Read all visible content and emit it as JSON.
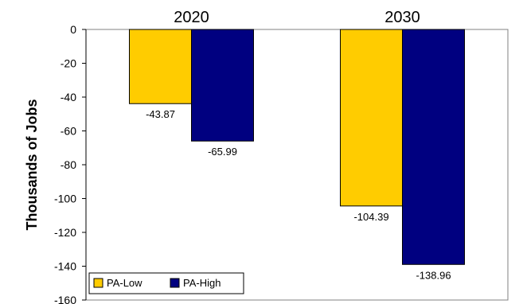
{
  "chart_data": {
    "type": "bar",
    "categories": [
      "2020",
      "2030"
    ],
    "series": [
      {
        "name": "PA-Low",
        "values": [
          -43.87,
          -104.39
        ],
        "color": "#FFCC00"
      },
      {
        "name": "PA-High",
        "values": [
          -65.99,
          -138.96
        ],
        "color": "#000080"
      }
    ],
    "data_labels": [
      [
        "-43.87",
        "-104.39"
      ],
      [
        "-65.99",
        "-138.96"
      ]
    ],
    "ylabel": "Thousands of Jobs",
    "ylim": [
      -160,
      0
    ],
    "yticks": [
      0,
      -20,
      -40,
      -60,
      -80,
      -100,
      -120,
      -140,
      -160
    ],
    "ytick_labels": [
      "0",
      "-20",
      "-40",
      "-60",
      "-80",
      "-100",
      "-120",
      "-140",
      "-160"
    ],
    "legend": {
      "placement": "bottom-left",
      "entries": [
        "PA-Low",
        "PA-High"
      ]
    },
    "grid": false,
    "plot_background": "#FFFFFF"
  }
}
